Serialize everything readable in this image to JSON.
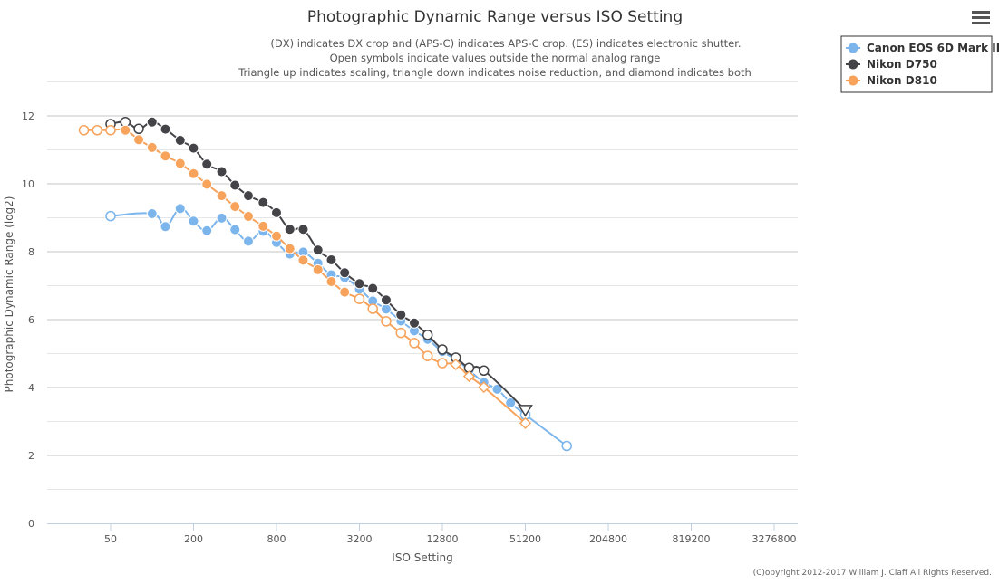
{
  "colors": {
    "canon": "#7cb5ec",
    "d750": "#434348",
    "d810": "#f7a35c",
    "grid": "#d8d8d8",
    "axis": "#c0d0e0"
  },
  "menu_icon": "hamburger-menu-icon",
  "chart_data": {
    "type": "line",
    "title": "Photographic Dynamic Range versus ISO Setting",
    "subtitle": [
      "(DX) indicates DX crop and (APS-C) indicates APS-C crop. (ES) indicates electronic shutter.",
      "Open symbols indicate values outside the normal analog range",
      "Triangle up indicates scaling, triangle down indicates noise reduction, and diamond indicates both"
    ],
    "xlabel": "ISO Setting",
    "ylabel": "Photographic Dynamic Range (log2)",
    "x_scale": "log2",
    "x_ticks": [
      "50",
      "200",
      "800",
      "3200",
      "12800",
      "51200",
      "204800",
      "819200",
      "3276800"
    ],
    "y_ticks": [
      "0",
      "2",
      "4",
      "6",
      "8",
      "10",
      "12"
    ],
    "ylim": [
      0,
      13
    ],
    "grid": true,
    "legend_position": "top-right",
    "credit": "(C)opyright 2012-2017 William J. Claff All Rights Reserved.",
    "series": [
      {
        "name": "Canon EOS 6D Mark II",
        "color": "#7cb5ec",
        "points": [
          {
            "iso": 50,
            "dr": 9.05,
            "marker": "open-circle"
          },
          {
            "iso": 100,
            "dr": 9.12,
            "marker": "circle"
          },
          {
            "iso": 125,
            "dr": 8.74,
            "marker": "circle"
          },
          {
            "iso": 160,
            "dr": 9.27,
            "marker": "circle"
          },
          {
            "iso": 200,
            "dr": 8.9,
            "marker": "circle"
          },
          {
            "iso": 250,
            "dr": 8.62,
            "marker": "circle"
          },
          {
            "iso": 320,
            "dr": 8.99,
            "marker": "circle"
          },
          {
            "iso": 400,
            "dr": 8.65,
            "marker": "circle"
          },
          {
            "iso": 500,
            "dr": 8.31,
            "marker": "circle"
          },
          {
            "iso": 640,
            "dr": 8.6,
            "marker": "circle"
          },
          {
            "iso": 800,
            "dr": 8.27,
            "marker": "circle"
          },
          {
            "iso": 1000,
            "dr": 7.93,
            "marker": "circle"
          },
          {
            "iso": 1250,
            "dr": 7.99,
            "marker": "circle"
          },
          {
            "iso": 1600,
            "dr": 7.66,
            "marker": "circle"
          },
          {
            "iso": 2000,
            "dr": 7.32,
            "marker": "circle"
          },
          {
            "iso": 2500,
            "dr": 7.24,
            "marker": "circle"
          },
          {
            "iso": 3200,
            "dr": 6.9,
            "marker": "circle"
          },
          {
            "iso": 4000,
            "dr": 6.55,
            "marker": "circle"
          },
          {
            "iso": 5000,
            "dr": 6.31,
            "marker": "circle"
          },
          {
            "iso": 6400,
            "dr": 5.96,
            "marker": "circle"
          },
          {
            "iso": 8000,
            "dr": 5.67,
            "marker": "circle"
          },
          {
            "iso": 10000,
            "dr": 5.42,
            "marker": "circle"
          },
          {
            "iso": 12800,
            "dr": 5.06,
            "marker": "circle"
          },
          {
            "iso": 16000,
            "dr": 4.83,
            "marker": "circle"
          },
          {
            "iso": 20000,
            "dr": 4.51,
            "marker": "circle"
          },
          {
            "iso": 25600,
            "dr": 4.15,
            "marker": "circle"
          },
          {
            "iso": 32000,
            "dr": 3.95,
            "marker": "circle"
          },
          {
            "iso": 40000,
            "dr": 3.55,
            "marker": "circle"
          },
          {
            "iso": 51200,
            "dr": 3.2,
            "marker": "open-circle"
          },
          {
            "iso": 102400,
            "dr": 2.28,
            "marker": "open-circle"
          }
        ]
      },
      {
        "name": "Nikon D750",
        "color": "#434348",
        "points": [
          {
            "iso": 50,
            "dr": 11.76,
            "marker": "open-circle"
          },
          {
            "iso": 64,
            "dr": 11.82,
            "marker": "open-circle"
          },
          {
            "iso": 80,
            "dr": 11.62,
            "marker": "open-circle"
          },
          {
            "iso": 100,
            "dr": 11.82,
            "marker": "circle"
          },
          {
            "iso": 125,
            "dr": 11.61,
            "marker": "circle"
          },
          {
            "iso": 160,
            "dr": 11.28,
            "marker": "circle"
          },
          {
            "iso": 200,
            "dr": 11.05,
            "marker": "circle"
          },
          {
            "iso": 250,
            "dr": 10.58,
            "marker": "circle"
          },
          {
            "iso": 320,
            "dr": 10.36,
            "marker": "circle"
          },
          {
            "iso": 400,
            "dr": 9.96,
            "marker": "circle"
          },
          {
            "iso": 500,
            "dr": 9.65,
            "marker": "circle"
          },
          {
            "iso": 640,
            "dr": 9.45,
            "marker": "circle"
          },
          {
            "iso": 800,
            "dr": 9.15,
            "marker": "circle"
          },
          {
            "iso": 1000,
            "dr": 8.66,
            "marker": "circle"
          },
          {
            "iso": 1250,
            "dr": 8.66,
            "marker": "circle"
          },
          {
            "iso": 1600,
            "dr": 8.05,
            "marker": "circle"
          },
          {
            "iso": 2000,
            "dr": 7.76,
            "marker": "circle"
          },
          {
            "iso": 2500,
            "dr": 7.38,
            "marker": "circle"
          },
          {
            "iso": 3200,
            "dr": 7.06,
            "marker": "circle"
          },
          {
            "iso": 4000,
            "dr": 6.92,
            "marker": "circle"
          },
          {
            "iso": 5000,
            "dr": 6.58,
            "marker": "circle"
          },
          {
            "iso": 6400,
            "dr": 6.14,
            "marker": "circle"
          },
          {
            "iso": 8000,
            "dr": 5.9,
            "marker": "circle"
          },
          {
            "iso": 10000,
            "dr": 5.55,
            "marker": "open-circle"
          },
          {
            "iso": 12800,
            "dr": 5.12,
            "marker": "open-circle"
          },
          {
            "iso": 16000,
            "dr": 4.88,
            "marker": "open-circle"
          },
          {
            "iso": 20000,
            "dr": 4.58,
            "marker": "open-circle"
          },
          {
            "iso": 25600,
            "dr": 4.5,
            "marker": "open-circle"
          },
          {
            "iso": 51200,
            "dr": 3.34,
            "marker": "open-triangle-down"
          }
        ]
      },
      {
        "name": "Nikon D810",
        "color": "#f7a35c",
        "points": [
          {
            "iso": 32,
            "dr": 11.58,
            "marker": "open-circle"
          },
          {
            "iso": 40,
            "dr": 11.58,
            "marker": "open-circle"
          },
          {
            "iso": 50,
            "dr": 11.58,
            "marker": "open-circle"
          },
          {
            "iso": 64,
            "dr": 11.58,
            "marker": "circle"
          },
          {
            "iso": 80,
            "dr": 11.3,
            "marker": "circle"
          },
          {
            "iso": 100,
            "dr": 11.07,
            "marker": "circle"
          },
          {
            "iso": 125,
            "dr": 10.82,
            "marker": "circle"
          },
          {
            "iso": 160,
            "dr": 10.6,
            "marker": "circle"
          },
          {
            "iso": 200,
            "dr": 10.3,
            "marker": "circle"
          },
          {
            "iso": 250,
            "dr": 9.99,
            "marker": "circle"
          },
          {
            "iso": 320,
            "dr": 9.65,
            "marker": "circle"
          },
          {
            "iso": 400,
            "dr": 9.33,
            "marker": "circle"
          },
          {
            "iso": 500,
            "dr": 9.04,
            "marker": "circle"
          },
          {
            "iso": 640,
            "dr": 8.75,
            "marker": "circle"
          },
          {
            "iso": 800,
            "dr": 8.46,
            "marker": "circle"
          },
          {
            "iso": 1000,
            "dr": 8.09,
            "marker": "circle"
          },
          {
            "iso": 1250,
            "dr": 7.75,
            "marker": "circle"
          },
          {
            "iso": 1600,
            "dr": 7.47,
            "marker": "circle"
          },
          {
            "iso": 2000,
            "dr": 7.12,
            "marker": "circle"
          },
          {
            "iso": 2500,
            "dr": 6.81,
            "marker": "circle"
          },
          {
            "iso": 3200,
            "dr": 6.61,
            "marker": "open-circle"
          },
          {
            "iso": 4000,
            "dr": 6.32,
            "marker": "open-circle"
          },
          {
            "iso": 5000,
            "dr": 5.95,
            "marker": "open-circle"
          },
          {
            "iso": 6400,
            "dr": 5.61,
            "marker": "open-circle"
          },
          {
            "iso": 8000,
            "dr": 5.31,
            "marker": "open-circle"
          },
          {
            "iso": 10000,
            "dr": 4.93,
            "marker": "open-circle"
          },
          {
            "iso": 12800,
            "dr": 4.72,
            "marker": "open-circle"
          },
          {
            "iso": 16000,
            "dr": 4.68,
            "marker": "open-diamond"
          },
          {
            "iso": 20000,
            "dr": 4.33,
            "marker": "open-diamond"
          },
          {
            "iso": 25600,
            "dr": 4.01,
            "marker": "open-diamond"
          },
          {
            "iso": 51200,
            "dr": 2.95,
            "marker": "open-diamond"
          }
        ]
      }
    ]
  }
}
